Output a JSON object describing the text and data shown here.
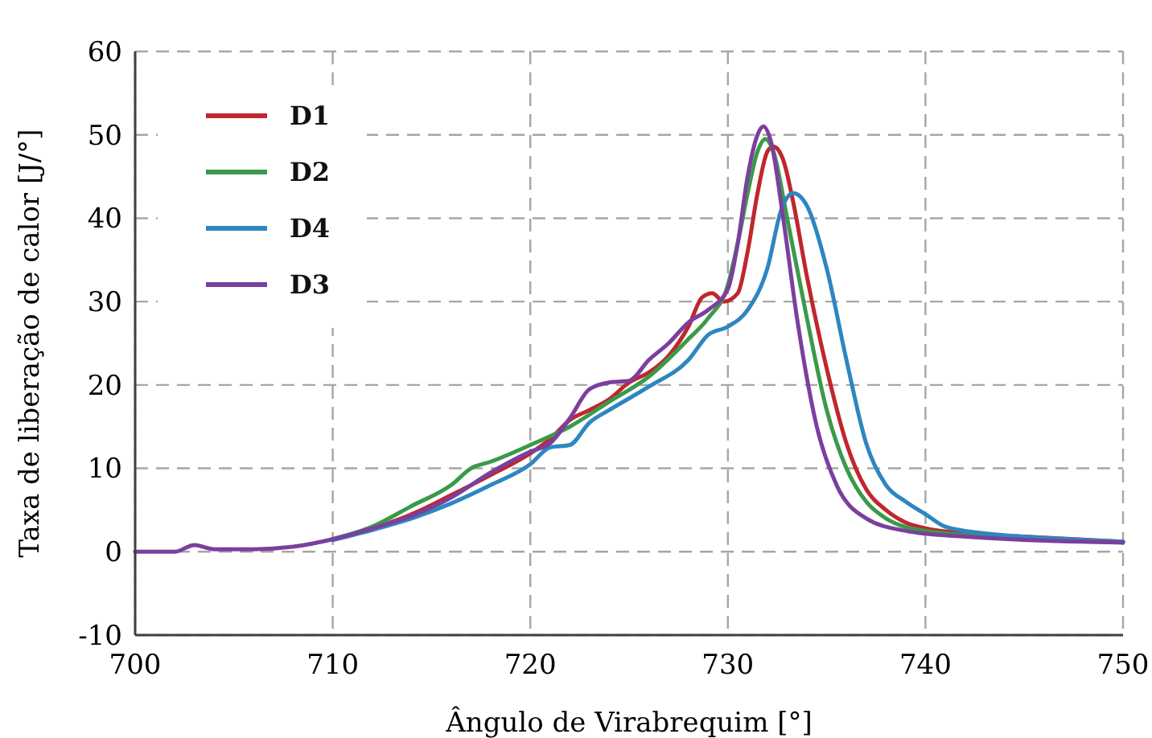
{
  "chart_data": {
    "type": "line",
    "xlabel": "Ângulo de Virabrequim [°]",
    "ylabel": "Taxa de liberação de calor [J/°]",
    "xlim": [
      700,
      750
    ],
    "ylim": [
      -10,
      60
    ],
    "xticks": [
      700,
      710,
      720,
      730,
      740,
      750
    ],
    "yticks": [
      -10,
      0,
      10,
      20,
      30,
      40,
      50,
      60
    ],
    "grid": true,
    "legend": "top left",
    "marker": "none",
    "line_style": "solid",
    "series": [
      {
        "name": "D1",
        "color": "#c0272d",
        "x": [
          710,
          712,
          714,
          716,
          718,
          720,
          721,
          722,
          723,
          724,
          725,
          726,
          727,
          728,
          728.7,
          729.2,
          729.8,
          730.5,
          731,
          731.5,
          732,
          732.3,
          732.8,
          733.3,
          734,
          735,
          736,
          737,
          738,
          739,
          740,
          742,
          745,
          750
        ],
        "values": [
          1.5,
          2.8,
          4.5,
          6.8,
          9.2,
          11.8,
          13.5,
          15.8,
          17,
          18.3,
          20.3,
          21.5,
          23.5,
          27,
          30.5,
          31,
          30,
          31,
          36,
          43,
          48,
          48.6,
          47,
          42,
          33,
          22,
          13,
          7.5,
          5,
          3.5,
          2.8,
          2.2,
          1.8,
          1.2
        ]
      },
      {
        "name": "D2",
        "color": "#3a9a4a",
        "x": [
          710,
          712,
          714,
          716,
          717,
          718,
          720,
          722,
          724,
          726,
          728,
          729,
          730,
          730.5,
          731,
          731.5,
          731.9,
          732.3,
          733,
          734,
          735,
          736,
          737,
          738,
          740,
          745,
          750
        ],
        "values": [
          1.5,
          3,
          5.5,
          8,
          10,
          10.8,
          12.8,
          15,
          18,
          21,
          25.5,
          28,
          32,
          37,
          43,
          48,
          49.5,
          48,
          40,
          28,
          17,
          10,
          6,
          4,
          2.5,
          1.6,
          1.2
        ]
      },
      {
        "name": "D4",
        "color": "#2e86c1",
        "x": [
          710,
          712,
          714,
          716,
          718,
          720,
          721,
          722,
          723,
          724,
          726,
          728,
          729,
          730,
          731,
          732,
          732.7,
          733.3,
          734,
          735,
          736,
          737,
          738,
          739,
          740,
          741,
          743,
          745,
          750
        ],
        "values": [
          1.4,
          2.6,
          4,
          5.8,
          8,
          10.5,
          12.5,
          12.8,
          15.5,
          17,
          19.8,
          23,
          26,
          27,
          29,
          34,
          41,
          43,
          41.5,
          34,
          23,
          13,
          8,
          6,
          4.5,
          3,
          2.2,
          1.8,
          1.2
        ]
      },
      {
        "name": "D3",
        "color": "#7b3f9e",
        "x": [
          700,
          702,
          703,
          704,
          706,
          708,
          710,
          712,
          714,
          716,
          718,
          720,
          721,
          722,
          723,
          724,
          725,
          726,
          727,
          728,
          729,
          730,
          730.5,
          731,
          731.5,
          731.8,
          732.2,
          732.8,
          733.5,
          734.5,
          735.5,
          737,
          739,
          742,
          750
        ],
        "values": [
          0,
          0,
          0.8,
          0.3,
          0.3,
          0.6,
          1.5,
          2.8,
          4.3,
          6.5,
          9.5,
          12,
          13,
          16,
          19.5,
          20.3,
          20.5,
          23,
          25,
          27.5,
          29,
          31.5,
          37,
          45,
          50,
          51,
          49,
          40,
          28,
          15,
          8,
          4,
          2.5,
          1.8,
          1.1
        ]
      }
    ]
  }
}
